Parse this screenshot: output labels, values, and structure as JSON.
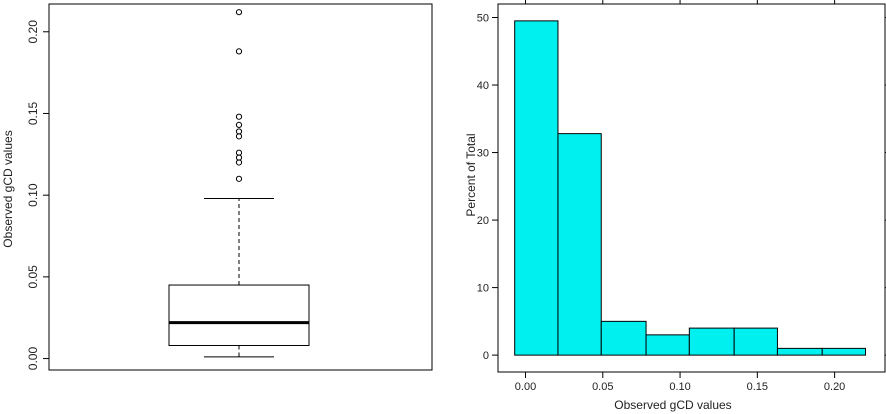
{
  "chart_data": [
    {
      "type": "box",
      "ylabel": "Observed gCD values",
      "yticks": [
        "0.00",
        "0.05",
        "0.10",
        "0.15",
        "0.20"
      ],
      "ytick_values": [
        0.0,
        0.05,
        0.1,
        0.15,
        0.2
      ],
      "ylim": [
        -0.007,
        0.217
      ],
      "stats": {
        "whisker_low": 0.001,
        "q1": 0.008,
        "median": 0.022,
        "q3": 0.045,
        "whisker_high": 0.098
      },
      "outliers": [
        0.11,
        0.12,
        0.123,
        0.126,
        0.136,
        0.139,
        0.143,
        0.148,
        0.188,
        0.212
      ]
    },
    {
      "type": "bar",
      "xlabel": "Observed gCD values",
      "ylabel": "Percent of Total",
      "bar_color": "#00f0f0",
      "bins": [
        {
          "x0": -0.007,
          "x1": 0.021,
          "value": 49.5
        },
        {
          "x0": 0.021,
          "x1": 0.049,
          "value": 32.8
        },
        {
          "x0": 0.049,
          "x1": 0.078,
          "value": 5.0
        },
        {
          "x0": 0.078,
          "x1": 0.106,
          "value": 3.0
        },
        {
          "x0": 0.106,
          "x1": 0.135,
          "value": 4.0
        },
        {
          "x0": 0.135,
          "x1": 0.163,
          "value": 4.0
        },
        {
          "x0": 0.163,
          "x1": 0.192,
          "value": 1.0
        },
        {
          "x0": 0.192,
          "x1": 0.22,
          "value": 1.0
        }
      ],
      "xticks": [
        "0.00",
        "0.05",
        "0.10",
        "0.15",
        "0.20"
      ],
      "xtick_values": [
        0.0,
        0.05,
        0.1,
        0.15,
        0.2
      ],
      "yticks": [
        "0",
        "10",
        "20",
        "30",
        "40",
        "50"
      ],
      "ytick_values": [
        0,
        10,
        20,
        30,
        40,
        50
      ],
      "xlim": [
        -0.0178,
        0.2326
      ],
      "ylim": [
        -2.5,
        52.0
      ]
    }
  ]
}
